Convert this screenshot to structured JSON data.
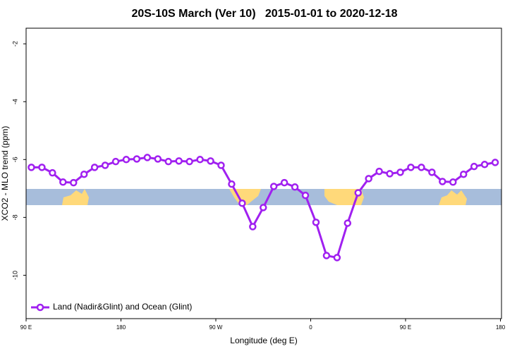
{
  "chart_data": {
    "type": "line",
    "title": "20S-10S March (Ver 10)   2015-01-01 to 2020-12-18",
    "x_label": "Longitude (deg E)",
    "y_label": "XCO2 - MLO trend (ppm)",
    "x": [
      95,
      105,
      115,
      125,
      135,
      145,
      155,
      165,
      175,
      185,
      195,
      205,
      215,
      225,
      235,
      245,
      255,
      265,
      275,
      285,
      295,
      305,
      315,
      325,
      335,
      345,
      355,
      365,
      375,
      385,
      395,
      405,
      415,
      425,
      435,
      445,
      455,
      465,
      475,
      485,
      495,
      505,
      515,
      525,
      535
    ],
    "series": [
      {
        "name": "Land (Nadir&Glint) and Ocean (Glint)",
        "color": "#a020f0",
        "values": [
          -6.27,
          -6.27,
          -6.46,
          -6.78,
          -6.8,
          -6.51,
          -6.27,
          -6.2,
          -6.07,
          -6.0,
          -5.98,
          -5.93,
          -5.98,
          -6.07,
          -6.05,
          -6.07,
          -6.0,
          -6.05,
          -6.2,
          -6.85,
          -7.51,
          -8.32,
          -7.66,
          -6.93,
          -6.8,
          -6.95,
          -7.24,
          -8.17,
          -9.32,
          -9.39,
          -8.2,
          -7.15,
          -6.66,
          -6.41,
          -6.49,
          -6.44,
          -6.27,
          -6.27,
          -6.44,
          -6.76,
          -6.78,
          -6.51,
          -6.24,
          -6.17,
          -6.1
        ]
      }
    ],
    "xlim": [
      90,
      541
    ],
    "xticks": [
      {
        "value": 90,
        "label": "90 E"
      },
      {
        "value": 180,
        "label": "180"
      },
      {
        "value": 270,
        "label": "90 W"
      },
      {
        "value": 360,
        "label": "0"
      },
      {
        "value": 450,
        "label": "90 E"
      },
      {
        "value": 540,
        "label": "180"
      }
    ],
    "ylim": [
      -11.5,
      -1.46
    ],
    "yticks": [
      -2,
      -4,
      -6,
      -8,
      -10
    ],
    "legend": "bottomleft"
  }
}
